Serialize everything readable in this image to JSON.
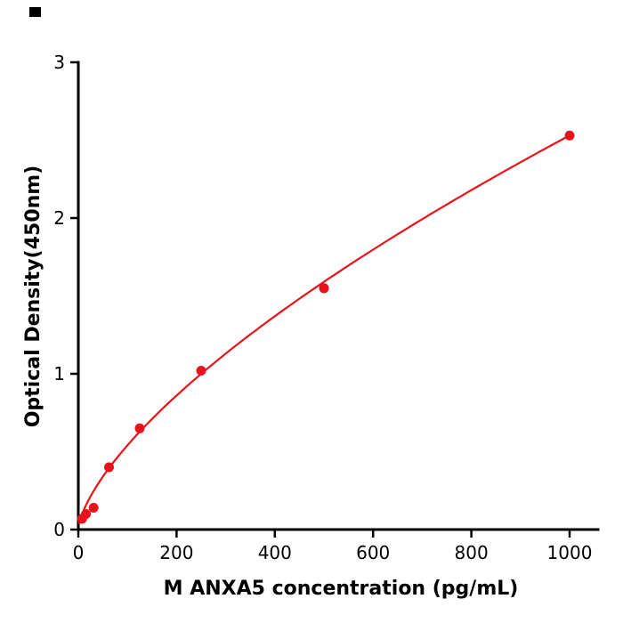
{
  "chart_data": {
    "type": "scatter",
    "title": "",
    "xlabel": "M  ANXA5 concentration (pg/mL)",
    "ylabel": "Optical Density(450nm)",
    "x": [
      7.8,
      15.6,
      31.2,
      62.5,
      125,
      250,
      500,
      1000
    ],
    "y": [
      0.07,
      0.1,
      0.14,
      0.4,
      0.65,
      1.02,
      1.55,
      2.53
    ],
    "x_ticks": [
      0,
      200,
      400,
      600,
      800,
      1000
    ],
    "y_ticks": [
      0,
      1,
      2,
      3
    ],
    "xlim": [
      0,
      1058
    ],
    "ylim": [
      0,
      3
    ],
    "grid": "off",
    "legend": "none",
    "point_color": "#e8131a",
    "curve_color": "#e8131a",
    "axis_color": "#000000",
    "trend": {
      "type": "power",
      "a": 0.02473,
      "b": 0.67,
      "x_start": 2,
      "x_end": 1000
    }
  }
}
